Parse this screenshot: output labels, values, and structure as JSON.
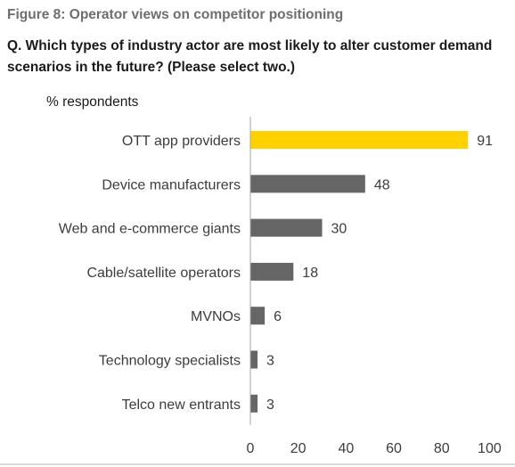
{
  "figure_title": "Figure 8: Operator views on competitor positioning",
  "question": "Q. Which types of industry actor are most likely to alter customer demand scenarios in the future? (Please select two.)",
  "units_label": "% respondents",
  "colors": {
    "highlight": "#ffd100",
    "bar": "#666666",
    "axis": "#a6a6a6"
  },
  "chart_data": {
    "type": "bar",
    "orientation": "horizontal",
    "title": "Figure 8: Operator views on competitor positioning",
    "subtitle": "Q. Which types of industry actor are most likely to alter customer demand scenarios in the future? (Please select two.)",
    "xlabel": "% respondents",
    "ylabel": "",
    "categories": [
      "OTT app providers",
      "Device manufacturers",
      "Web and e-commerce giants",
      "Cable/satellite operators",
      "MVNOs",
      "Technology specialists",
      "Telco new entrants"
    ],
    "values": [
      91,
      48,
      30,
      18,
      6,
      3,
      3
    ],
    "highlight_index": 0,
    "xlim": [
      0,
      100
    ],
    "xticks": [
      0,
      20,
      40,
      60,
      80,
      100
    ],
    "grid": false,
    "legend": "none"
  }
}
